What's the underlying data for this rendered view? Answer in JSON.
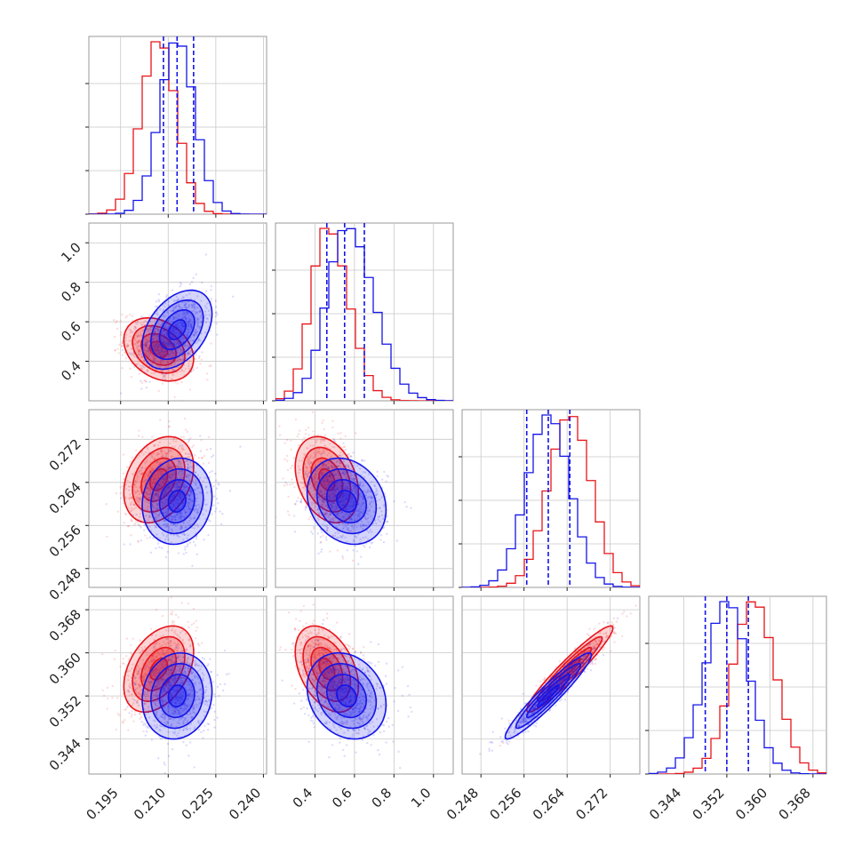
{
  "colors": {
    "red": "#e8141a",
    "blue": "#1414e8",
    "grid": "#c8c8c8",
    "frame": "#999999"
  },
  "chart_data": {
    "type": "scatter",
    "subtype": "corner",
    "grid": true,
    "params": [
      {
        "range": [
          0.185,
          0.241
        ],
        "ticks": [
          0.195,
          0.21,
          0.225,
          0.24
        ],
        "tick_labels": [
          "0.195",
          "0.210",
          "0.225",
          "0.240"
        ]
      },
      {
        "range": [
          0.2,
          1.1
        ],
        "ticks": [
          0.4,
          0.6,
          0.8,
          1.0
        ],
        "tick_labels": [
          "0.4",
          "0.6",
          "0.8",
          "1.0"
        ]
      },
      {
        "range": [
          0.2445,
          0.2775
        ],
        "ticks": [
          0.248,
          0.256,
          0.264,
          0.272
        ],
        "tick_labels": [
          "0.248",
          "0.256",
          "0.264",
          "0.272"
        ]
      },
      {
        "range": [
          0.3375,
          0.3705
        ],
        "ticks": [
          0.344,
          0.352,
          0.36,
          0.368
        ],
        "tick_labels": [
          "0.344",
          "0.352",
          "0.360",
          "0.368"
        ]
      }
    ],
    "series": [
      {
        "color_key": "red",
        "mean": [
          0.207,
          0.46,
          0.2645,
          0.357
        ],
        "sd": [
          0.0055,
          0.08,
          0.004,
          0.004
        ]
      },
      {
        "color_key": "blue",
        "mean": [
          0.2128,
          0.56,
          0.2605,
          0.352
        ],
        "sd": [
          0.0055,
          0.1,
          0.004,
          0.004
        ],
        "quantiles": [
          [
            0.2085,
            0.2128,
            0.218
          ],
          [
            0.46,
            0.55,
            0.65
          ],
          [
            0.2565,
            0.2605,
            0.2645
          ],
          [
            0.348,
            0.352,
            0.356
          ]
        ]
      }
    ],
    "correlations": {
      "red": {
        "0-1": -0.3,
        "0-2": 0.3,
        "0-3": 0.4,
        "1-2": -0.3,
        "1-3": -0.4,
        "2-3": 0.95
      },
      "blue": {
        "0-1": 0.4,
        "0-2": 0.1,
        "0-3": 0.1,
        "1-2": -0.2,
        "1-3": -0.2,
        "2-3": 0.95
      }
    },
    "contour_levels": [
      0.5,
      1.0,
      1.5,
      2.0
    ]
  }
}
